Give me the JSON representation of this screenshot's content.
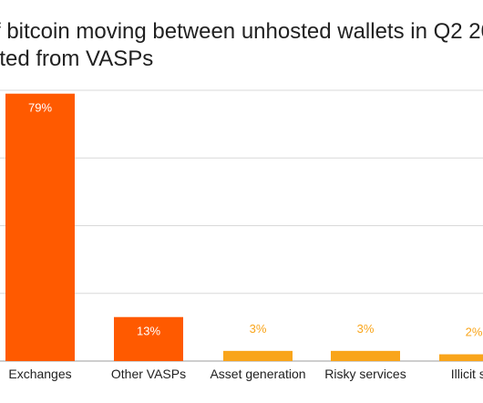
{
  "chart_data": {
    "type": "bar",
    "title_lines": [
      "f bitcoin moving between unhosted wallets in Q2 20",
      "ated from VASPs"
    ],
    "categories": [
      "Exchanges",
      "Other VASPs",
      "Asset generation",
      "Risky services",
      "Illicit ser"
    ],
    "values": [
      79,
      13,
      3,
      3,
      2
    ],
    "value_labels": [
      "79%",
      "13%",
      "3%",
      "3%",
      "2%"
    ],
    "ylim": [
      0,
      80
    ],
    "grid": true,
    "bar_colors": [
      "#ff5a00",
      "#ff5a00",
      "#f9a51b",
      "#f9a51b",
      "#f9a51b"
    ],
    "label_colors": {
      "inside_bar": "#ffffff",
      "above_bar": "#f9a51b"
    },
    "gridline_color": "#d9d9d9",
    "axis_text_color": "#212121"
  }
}
